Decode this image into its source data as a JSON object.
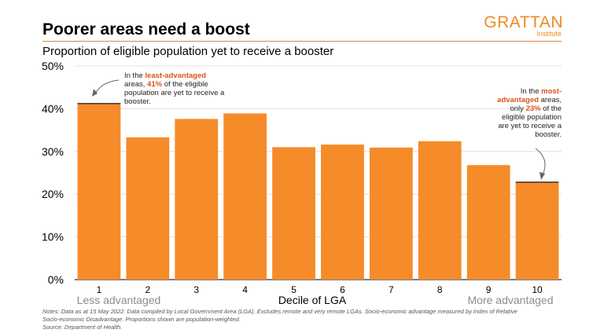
{
  "header": {
    "title": "Poorer areas need a boost",
    "subtitle": "Proportion of eligible population yet to receive a booster"
  },
  "logo": {
    "name": "GRATTAN",
    "sub": "Institute"
  },
  "colors": {
    "bar": "#f68b2a",
    "accent_text": "#d9531e",
    "grid": "#d9d9d9",
    "rule": "#e0883a"
  },
  "chart_data": {
    "type": "bar",
    "categories": [
      "1",
      "2",
      "3",
      "4",
      "5",
      "6",
      "7",
      "8",
      "9",
      "10"
    ],
    "values": [
      41.2,
      33.3,
      37.6,
      38.9,
      31.0,
      31.6,
      30.9,
      32.4,
      26.8,
      22.8
    ],
    "ylim": [
      0,
      50
    ],
    "yticks": [
      0,
      10,
      20,
      30,
      40,
      50
    ],
    "ytick_labels": [
      "0%",
      "10%",
      "20%",
      "30%",
      "40%",
      "50%"
    ],
    "xlabel": "Decile of LGA",
    "x_left_label": "Less advantaged",
    "x_right_label": "More advantaged",
    "grid": true,
    "annotations": {
      "left": {
        "l1": "In the ",
        "l1_hl": "least-advantaged",
        "l2a": "areas, ",
        "l2_hl": "41%",
        "l2b": " of the eligible",
        "l3": "population are yet to receive a",
        "l4": "booster."
      },
      "right": {
        "l1": "In the ",
        "l1_hl": "most-",
        "l2_hl": "advantaged",
        "l2b": " areas,",
        "l3a": "only ",
        "l3_hl": "23%",
        "l3b": " of the",
        "l4": "eligible population",
        "l5": "are yet to receive a",
        "l6": "booster."
      }
    }
  },
  "notes": {
    "line1": "Notes: Data as at 15 May 2022. Data compiled by Local Government Area (LGA). Excludes remote and very remote LGAs. Socio-economic advantage measured by Index of Relative",
    "line2": "Socio-economic Disadvantage. Proportions shown are population-weighted.",
    "line3": "Source: Department of Health."
  }
}
